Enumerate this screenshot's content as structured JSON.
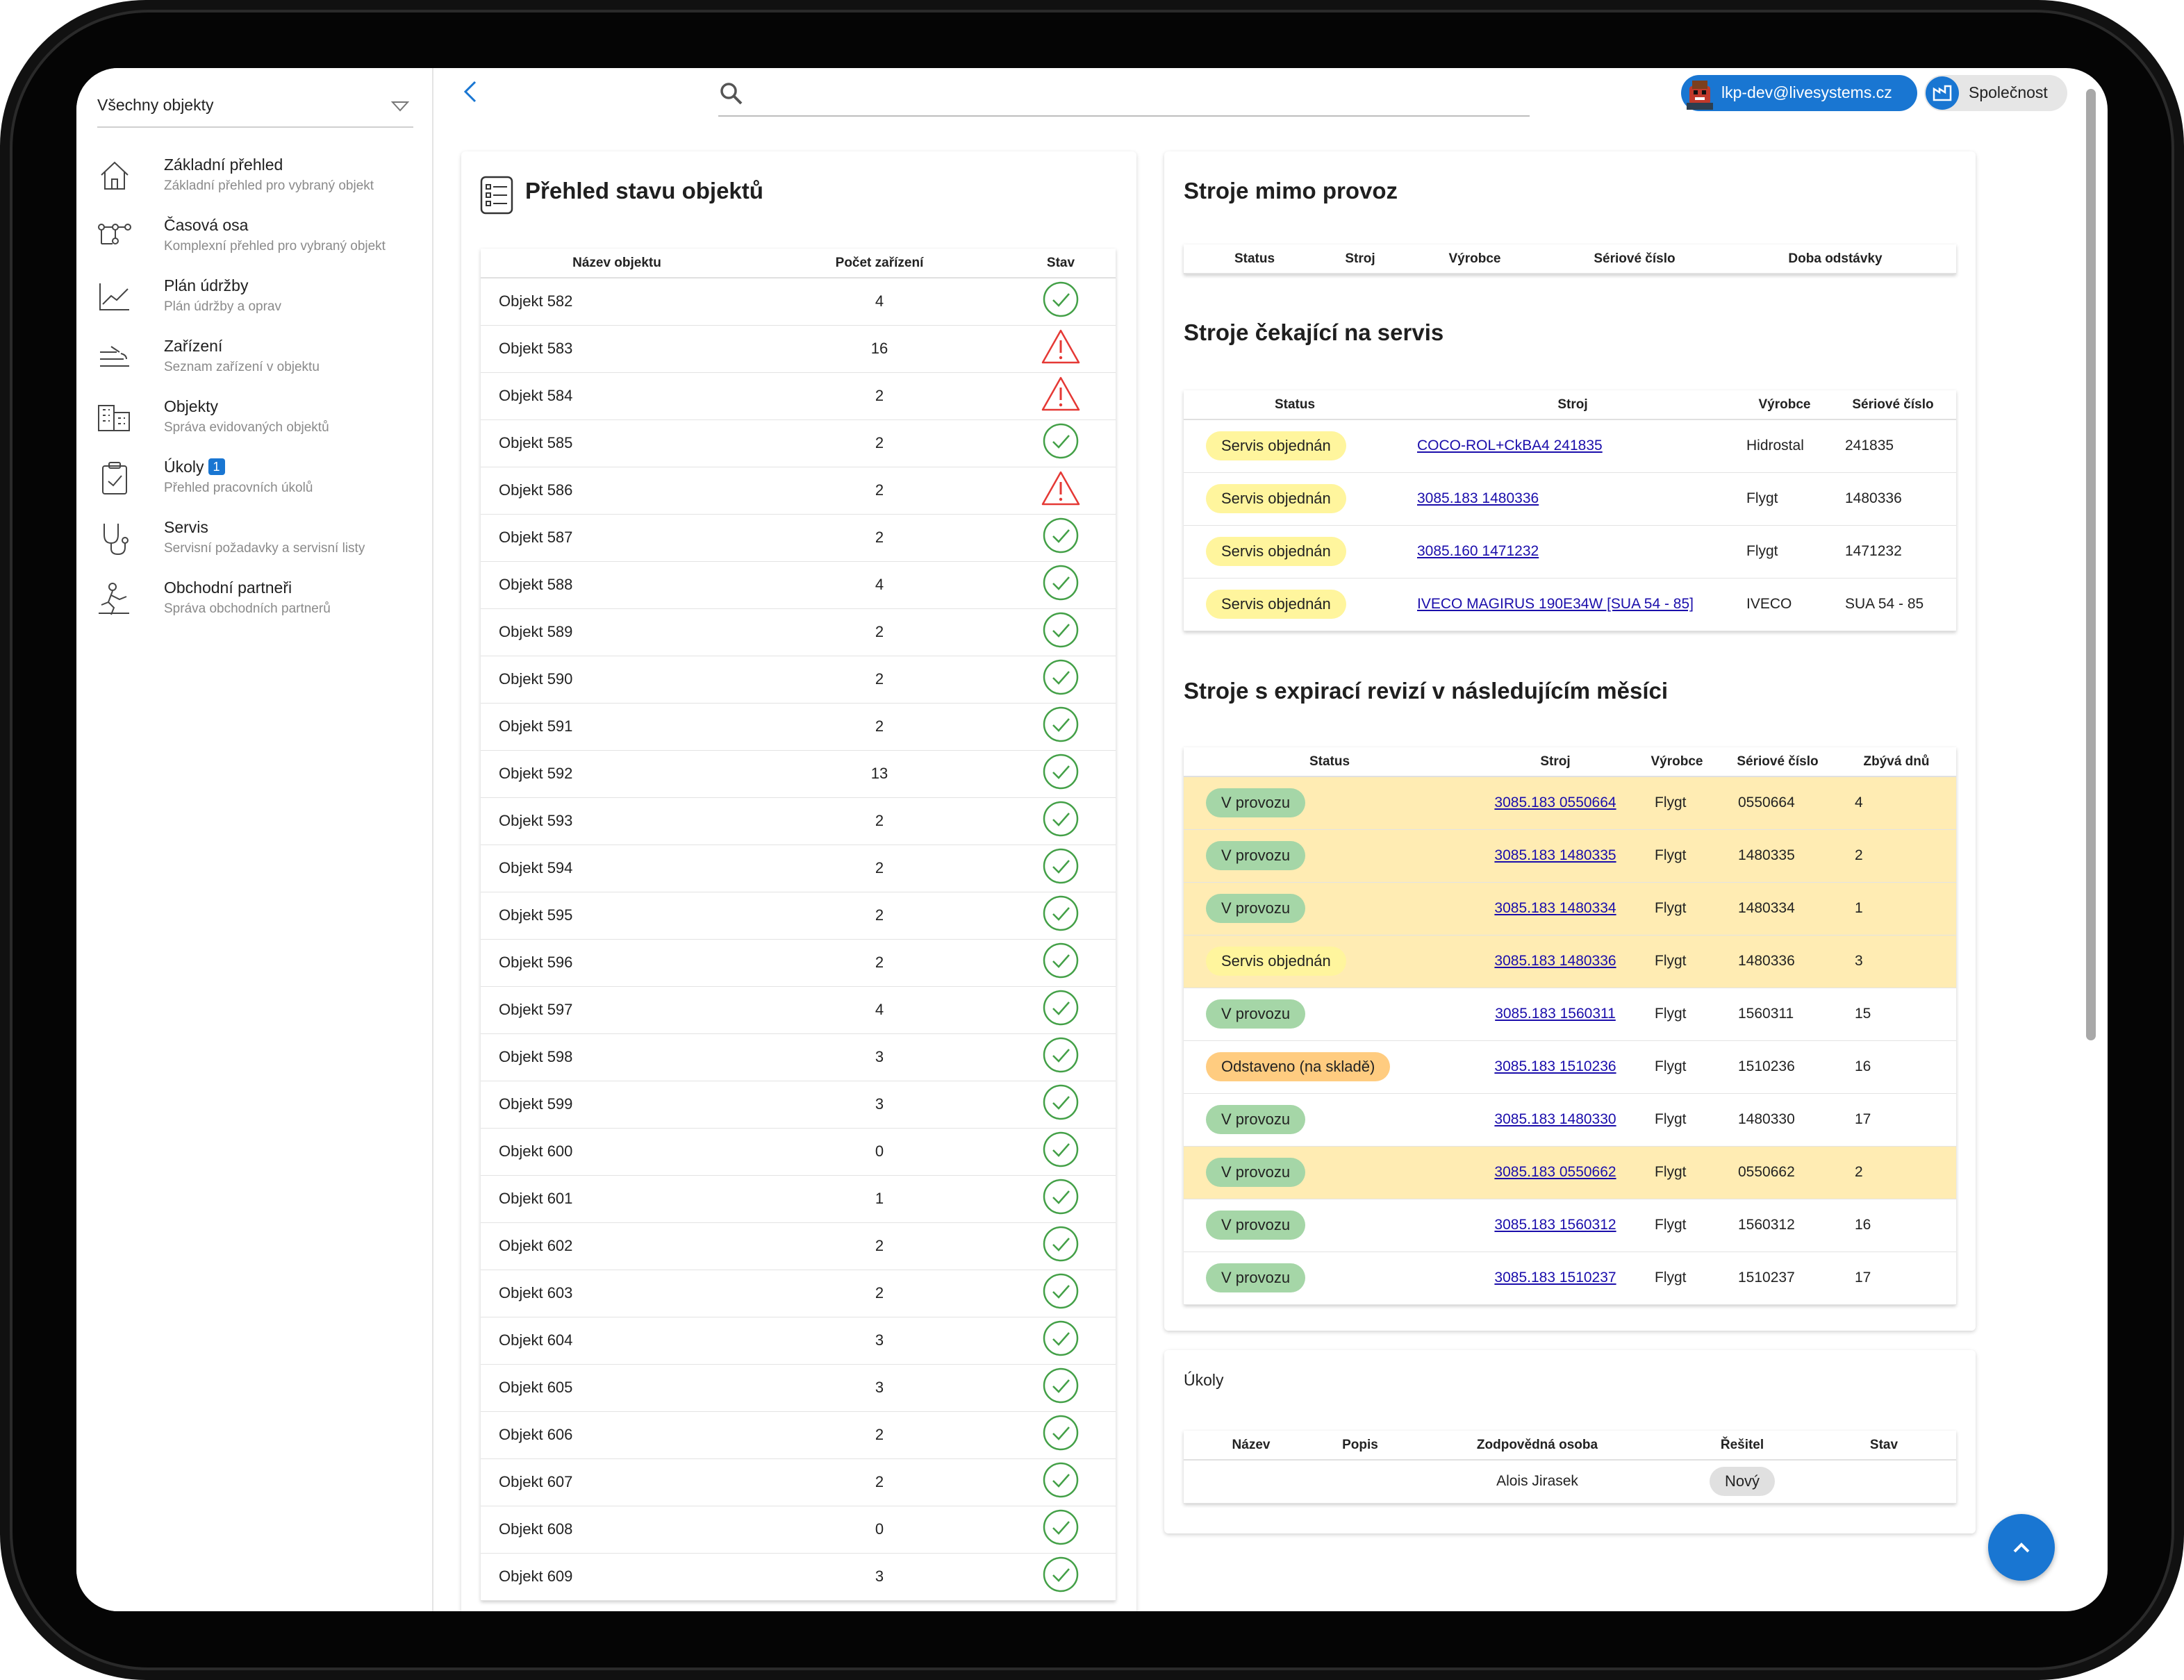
{
  "sidebar": {
    "selector": "Všechny objekty",
    "items": [
      {
        "title": "Základní přehled",
        "subtitle": "Základní přehled pro vybraný objekt",
        "icon": "home-icon"
      },
      {
        "title": "Časová osa",
        "subtitle": "Komplexní přehled pro vybraný objekt",
        "icon": "timeline-icon"
      },
      {
        "title": "Plán údržby",
        "subtitle": "Plán údržby a oprav",
        "icon": "chart-line-icon"
      },
      {
        "title": "Zařízení",
        "subtitle": "Seznam zařízení v objektu",
        "icon": "pump-icon"
      },
      {
        "title": "Objekty",
        "subtitle": "Správa evidovaných objektů",
        "icon": "buildings-icon"
      },
      {
        "title": "Úkoly",
        "subtitle": "Přehled pracovních úkolů",
        "icon": "clipboard-icon",
        "badge": "1"
      },
      {
        "title": "Servis",
        "subtitle": "Servisní požadavky a servisní listy",
        "icon": "stethoscope-icon"
      },
      {
        "title": "Obchodní partneři",
        "subtitle": "Správa obchodních partnerů",
        "icon": "partner-icon"
      }
    ]
  },
  "topbar": {
    "search_placeholder": "",
    "user": "lkp-dev@livesystems.cz",
    "company": "Společnost"
  },
  "overview": {
    "title": "Přehled stavu objektů",
    "headers": [
      "Název objektu",
      "Počet zařízení",
      "Stav"
    ],
    "rows": [
      {
        "name": "Objekt 582",
        "count": "4",
        "state": "ok"
      },
      {
        "name": "Objekt 583",
        "count": "16",
        "state": "warning"
      },
      {
        "name": "Objekt 584",
        "count": "2",
        "state": "warning"
      },
      {
        "name": "Objekt 585",
        "count": "2",
        "state": "ok"
      },
      {
        "name": "Objekt 586",
        "count": "2",
        "state": "warning"
      },
      {
        "name": "Objekt 587",
        "count": "2",
        "state": "ok"
      },
      {
        "name": "Objekt 588",
        "count": "4",
        "state": "ok"
      },
      {
        "name": "Objekt 589",
        "count": "2",
        "state": "ok"
      },
      {
        "name": "Objekt 590",
        "count": "2",
        "state": "ok"
      },
      {
        "name": "Objekt 591",
        "count": "2",
        "state": "ok"
      },
      {
        "name": "Objekt 592",
        "count": "13",
        "state": "ok"
      },
      {
        "name": "Objekt 593",
        "count": "2",
        "state": "ok"
      },
      {
        "name": "Objekt 594",
        "count": "2",
        "state": "ok"
      },
      {
        "name": "Objekt 595",
        "count": "2",
        "state": "ok"
      },
      {
        "name": "Objekt 596",
        "count": "2",
        "state": "ok"
      },
      {
        "name": "Objekt 597",
        "count": "4",
        "state": "ok"
      },
      {
        "name": "Objekt 598",
        "count": "3",
        "state": "ok"
      },
      {
        "name": "Objekt 599",
        "count": "3",
        "state": "ok"
      },
      {
        "name": "Objekt 600",
        "count": "0",
        "state": "ok"
      },
      {
        "name": "Objekt 601",
        "count": "1",
        "state": "ok"
      },
      {
        "name": "Objekt 602",
        "count": "2",
        "state": "ok"
      },
      {
        "name": "Objekt 603",
        "count": "2",
        "state": "ok"
      },
      {
        "name": "Objekt 604",
        "count": "3",
        "state": "ok"
      },
      {
        "name": "Objekt 605",
        "count": "3",
        "state": "ok"
      },
      {
        "name": "Objekt 606",
        "count": "2",
        "state": "ok"
      },
      {
        "name": "Objekt 607",
        "count": "2",
        "state": "ok"
      },
      {
        "name": "Objekt 608",
        "count": "0",
        "state": "ok"
      },
      {
        "name": "Objekt 609",
        "count": "3",
        "state": "ok"
      }
    ]
  },
  "out_of_service": {
    "title": "Stroje mimo provoz",
    "headers": [
      "Status",
      "Stroj",
      "Výrobce",
      "Sériové číslo",
      "Doba odstávky"
    ]
  },
  "awaiting_service": {
    "title": "Stroje čekající na servis",
    "headers": [
      "Status",
      "Stroj",
      "Výrobce",
      "Sériové číslo"
    ],
    "rows": [
      {
        "status": "Servis objednán",
        "machine": "COCO-ROL+CkBA4 241835",
        "maker": "Hidrostal",
        "serial": "241835"
      },
      {
        "status": "Servis objednán",
        "machine": "3085.183 1480336",
        "maker": "Flygt",
        "serial": "1480336"
      },
      {
        "status": "Servis objednán",
        "machine": "3085.160 1471232",
        "maker": "Flygt",
        "serial": "1471232"
      },
      {
        "status": "Servis objednán",
        "machine": "IVECO MAGIRUS 190E34W [SUA 54 - 85]",
        "maker": "IVECO",
        "serial": "SUA 54 - 85"
      }
    ]
  },
  "expiring": {
    "title": "Stroje s expirací revizí v následujícím měsíci",
    "headers": [
      "Status",
      "Stroj",
      "Výrobce",
      "Sériové číslo",
      "Zbývá dnů"
    ],
    "rows": [
      {
        "status": "V provozu",
        "pill": "green",
        "machine": "3085.183 0550664",
        "maker": "Flygt",
        "serial": "0550664",
        "days": "4",
        "highlight": true
      },
      {
        "status": "V provozu",
        "pill": "green",
        "machine": "3085.183 1480335",
        "maker": "Flygt",
        "serial": "1480335",
        "days": "2",
        "highlight": true
      },
      {
        "status": "V provozu",
        "pill": "green",
        "machine": "3085.183 1480334",
        "maker": "Flygt",
        "serial": "1480334",
        "days": "1",
        "highlight": true
      },
      {
        "status": "Servis objednán",
        "pill": "yellow",
        "machine": "3085.183 1480336",
        "maker": "Flygt",
        "serial": "1480336",
        "days": "3",
        "highlight": true
      },
      {
        "status": "V provozu",
        "pill": "green",
        "machine": "3085.183 1560311",
        "maker": "Flygt",
        "serial": "1560311",
        "days": "15",
        "highlight": false
      },
      {
        "status": "Odstaveno (na skladě)",
        "pill": "orange",
        "machine": "3085.183 1510236",
        "maker": "Flygt",
        "serial": "1510236",
        "days": "16",
        "highlight": false
      },
      {
        "status": "V provozu",
        "pill": "green",
        "machine": "3085.183 1480330",
        "maker": "Flygt",
        "serial": "1480330",
        "days": "17",
        "highlight": false
      },
      {
        "status": "V provozu",
        "pill": "green",
        "machine": "3085.183 0550662",
        "maker": "Flygt",
        "serial": "0550662",
        "days": "2",
        "highlight": true
      },
      {
        "status": "V provozu",
        "pill": "green",
        "machine": "3085.183 1560312",
        "maker": "Flygt",
        "serial": "1560312",
        "days": "16",
        "highlight": false
      },
      {
        "status": "V provozu",
        "pill": "green",
        "machine": "3085.183 1510237",
        "maker": "Flygt",
        "serial": "1510237",
        "days": "17",
        "highlight": false
      }
    ]
  },
  "tasks": {
    "title": "Úkoly",
    "headers": [
      "Název",
      "Popis",
      "Zodpovědná osoba",
      "Řešitel",
      "Stav"
    ],
    "rows": [
      {
        "name": "",
        "description": "",
        "responsible": "Alois Jirasek",
        "solver": "Nový",
        "state": ""
      }
    ]
  },
  "colors": {
    "accent": "#1976d2",
    "ok": "#43a047",
    "warning": "#e53935",
    "highlight": "#ffecb3"
  }
}
